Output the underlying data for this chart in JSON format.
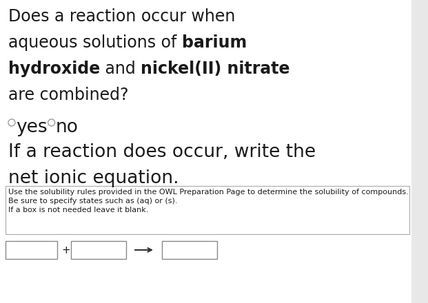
{
  "bg_color": "#e8e8e8",
  "panel_color": "#ffffff",
  "text_color": "#1a1a1a",
  "line1": "Does a reaction occur when",
  "line2_normal": "aqueous solutions of ",
  "line2_bold": "barium",
  "line3_bold1": "hydroxide",
  "line3_normal": " and ",
  "line3_bold2": "nickel(II) nitrate",
  "line4": "are combined?",
  "radio_yes": "yes",
  "radio_no": "no",
  "sec2_line1": "If a reaction does occur, write the",
  "sec2_line2": "net ionic equation.",
  "inst1": "Use the solubility rules provided in the OWL Preparation Page to determine the solubility of compounds.",
  "inst2": "Be sure to specify states such as (aq) or (s).",
  "inst3": "If a box is not needed leave it blank.",
  "main_fontsize": 17,
  "radio_fontsize": 19,
  "sec2_fontsize": 19,
  "inst_fontsize": 8,
  "border_color": "#aaaaaa",
  "right_bar_color": "#c8c8c8"
}
